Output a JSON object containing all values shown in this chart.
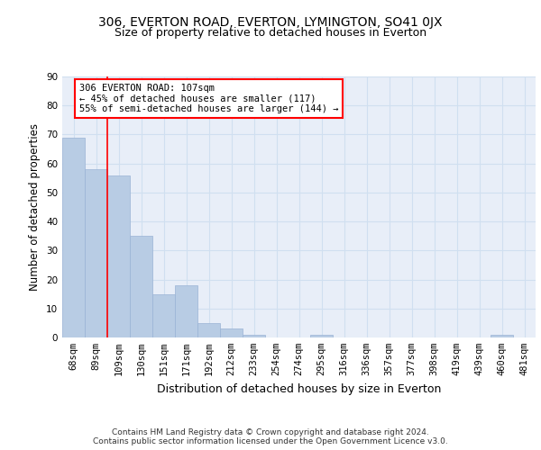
{
  "title1": "306, EVERTON ROAD, EVERTON, LYMINGTON, SO41 0JX",
  "title2": "Size of property relative to detached houses in Everton",
  "xlabel": "Distribution of detached houses by size in Everton",
  "ylabel": "Number of detached properties",
  "categories": [
    "68sqm",
    "89sqm",
    "109sqm",
    "130sqm",
    "151sqm",
    "171sqm",
    "192sqm",
    "212sqm",
    "233sqm",
    "254sqm",
    "274sqm",
    "295sqm",
    "316sqm",
    "336sqm",
    "357sqm",
    "377sqm",
    "398sqm",
    "419sqm",
    "439sqm",
    "460sqm",
    "481sqm"
  ],
  "values": [
    69,
    58,
    56,
    35,
    15,
    18,
    5,
    3,
    1,
    0,
    0,
    1,
    0,
    0,
    0,
    0,
    0,
    0,
    0,
    1,
    0
  ],
  "bar_color": "#b8cce4",
  "bar_edge_color": "#9ab3d5",
  "grid_color": "#d0dff0",
  "background_color": "#e8eef8",
  "annotation_text": "306 EVERTON ROAD: 107sqm\n← 45% of detached houses are smaller (117)\n55% of semi-detached houses are larger (144) →",
  "annotation_box_color": "white",
  "annotation_box_edge_color": "red",
  "vline_x": 1.5,
  "ylim": [
    0,
    90
  ],
  "yticks": [
    0,
    10,
    20,
    30,
    40,
    50,
    60,
    70,
    80,
    90
  ],
  "footer": "Contains HM Land Registry data © Crown copyright and database right 2024.\nContains public sector information licensed under the Open Government Licence v3.0.",
  "title_fontsize": 10,
  "subtitle_fontsize": 9,
  "tick_fontsize": 7.5,
  "ylabel_fontsize": 8.5,
  "xlabel_fontsize": 9,
  "ann_fontsize": 7.5,
  "footer_fontsize": 6.5
}
